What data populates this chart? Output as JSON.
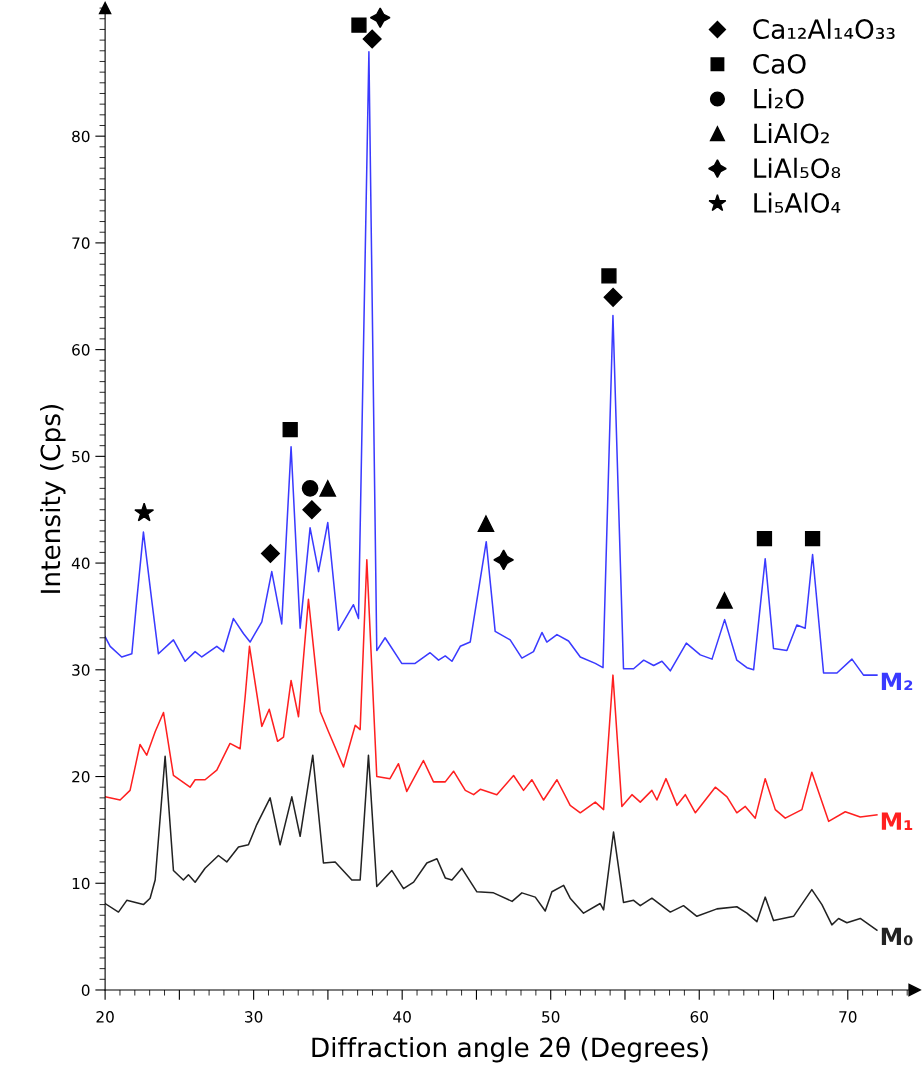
{
  "chart_data": {
    "type": "line",
    "xlabel": "Diffraction angle 2θ (Degrees)",
    "ylabel": "Intensity (Cps)",
    "xlim": [
      20,
      74.5
    ],
    "ylim": [
      0,
      92
    ],
    "xticks": [
      20,
      {
        "value": 25,
        "label": null
      },
      30,
      {
        "value": 35,
        "label": null
      },
      40,
      {
        "value": 45,
        "label": null
      },
      50,
      {
        "value": 55,
        "label": null
      },
      60,
      {
        "value": 65,
        "label": null
      },
      70
    ],
    "yticks": [
      0,
      10,
      20,
      30,
      40,
      50,
      60,
      70,
      80
    ],
    "legend": "top right",
    "line_style": "solid",
    "series": [
      {
        "name": "M₀",
        "color": "#222222",
        "x": [
          20.0,
          20.9,
          21.46,
          22.58,
          23.03,
          23.37,
          24.04,
          24.6,
          25.27,
          25.61,
          26.06,
          26.73,
          27.63,
          28.19,
          28.98,
          29.65,
          30.21,
          31.11,
          31.78,
          32.57,
          33.13,
          33.98,
          34.7,
          35.49,
          36.61,
          37.17,
          37.73,
          38.29,
          39.3,
          40.09,
          40.77,
          41.66,
          42.34,
          42.9,
          43.35,
          44.02,
          45.03,
          46.15,
          47.4,
          48.06,
          48.96,
          49.63,
          50.08,
          50.87,
          51.31,
          52.21,
          53.33,
          53.56,
          54.23,
          54.9,
          55.58,
          56.03,
          56.81,
          58.05,
          58.94,
          59.84,
          61.19,
          62.53,
          63.21,
          63.88,
          64.44,
          65.0,
          66.35,
          67.58,
          68.26,
          68.93,
          69.38,
          69.94,
          70.84,
          71.96
        ],
        "values": [
          8.1,
          7.3,
          8.4,
          8.0,
          8.6,
          10.3,
          21.9,
          11.2,
          10.3,
          10.8,
          10.1,
          11.4,
          12.6,
          12.0,
          13.4,
          13.6,
          15.5,
          18.0,
          13.6,
          18.1,
          14.4,
          22.0,
          11.9,
          12.0,
          10.3,
          10.3,
          22.0,
          9.7,
          11.2,
          9.5,
          10.1,
          11.9,
          12.3,
          10.5,
          10.3,
          11.4,
          9.2,
          9.1,
          8.3,
          9.1,
          8.7,
          7.4,
          9.2,
          9.8,
          8.6,
          7.2,
          8.1,
          7.5,
          14.8,
          8.2,
          8.4,
          7.9,
          8.6,
          7.3,
          7.9,
          6.9,
          7.6,
          7.8,
          7.2,
          6.4,
          8.7,
          6.5,
          6.9,
          9.4,
          8.0,
          6.1,
          6.7,
          6.3,
          6.7,
          5.6
        ]
      },
      {
        "name": "M₁",
        "color": "#ff2020",
        "x": [
          20.0,
          21.01,
          21.68,
          22.35,
          22.8,
          23.37,
          23.93,
          24.6,
          25.72,
          26.06,
          26.73,
          27.52,
          28.41,
          29.09,
          29.43,
          29.72,
          30.55,
          31.05,
          31.61,
          32.01,
          32.52,
          33.02,
          33.69,
          34.48,
          35.04,
          36.05,
          36.84,
          37.17,
          37.62,
          38.29,
          39.18,
          39.75,
          40.31,
          41.43,
          42.11,
          42.9,
          43.46,
          44.25,
          44.81,
          45.26,
          46.37,
          47.5,
          48.17,
          48.73,
          49.52,
          50.42,
          51.31,
          51.99,
          53.0,
          53.56,
          54.19,
          54.79,
          55.47,
          56.03,
          56.81,
          57.15,
          57.76,
          58.5,
          59.06,
          59.74,
          61.08,
          61.87,
          62.53,
          63.1,
          63.77,
          64.44,
          65.12,
          65.79,
          66.91,
          67.58,
          68.71,
          69.83,
          70.84,
          71.96
        ],
        "values": [
          18.1,
          17.8,
          18.7,
          23.0,
          22.0,
          24.2,
          26.0,
          20.1,
          19.0,
          19.7,
          19.7,
          20.6,
          23.1,
          22.6,
          27.5,
          32.2,
          24.7,
          26.3,
          23.3,
          23.7,
          29.0,
          25.6,
          36.6,
          26.1,
          24.2,
          20.9,
          24.8,
          24.4,
          40.3,
          20.0,
          19.8,
          21.2,
          18.6,
          21.5,
          19.5,
          19.5,
          20.5,
          18.7,
          18.3,
          18.8,
          18.3,
          20.1,
          18.7,
          19.7,
          17.8,
          19.7,
          17.3,
          16.6,
          17.6,
          16.9,
          29.5,
          17.2,
          18.3,
          17.6,
          18.7,
          17.8,
          19.8,
          17.3,
          18.3,
          16.6,
          19.0,
          18.1,
          16.6,
          17.2,
          16.1,
          19.8,
          16.9,
          16.1,
          16.9,
          20.4,
          15.8,
          16.7,
          16.2,
          16.4
        ]
      },
      {
        "name": "M₂",
        "color": "#3a3aff",
        "x": [
          20.0,
          20.34,
          21.12,
          21.8,
          22.13,
          22.58,
          23.14,
          23.59,
          24.6,
          25.39,
          26.06,
          26.51,
          27.52,
          27.97,
          28.64,
          29.31,
          29.76,
          30.55,
          31.22,
          31.89,
          32.52,
          33.13,
          33.8,
          34.37,
          34.99,
          35.71,
          36.72,
          37.06,
          37.76,
          38.29,
          38.85,
          39.97,
          40.87,
          41.88,
          42.45,
          42.9,
          43.35,
          43.91,
          44.58,
          45.66,
          46.26,
          47.27,
          48.06,
          48.84,
          49.41,
          49.74,
          50.42,
          51.2,
          51.99,
          53.0,
          53.52,
          54.19,
          54.9,
          55.58,
          56.26,
          56.93,
          57.49,
          58.05,
          59.13,
          60.07,
          60.86,
          61.71,
          62.53,
          63.21,
          63.66,
          64.44,
          65.0,
          65.9,
          66.57,
          67.13,
          67.63,
          68.37,
          69.27,
          70.28,
          71.06,
          71.96
        ],
        "values": [
          33.1,
          32.2,
          31.2,
          31.5,
          36.5,
          42.9,
          36.5,
          31.5,
          32.8,
          30.8,
          31.7,
          31.2,
          32.2,
          31.7,
          34.8,
          33.4,
          32.6,
          34.5,
          39.2,
          34.3,
          50.9,
          33.9,
          43.3,
          39.2,
          43.8,
          33.7,
          36.1,
          34.8,
          87.9,
          31.8,
          33.0,
          30.6,
          30.6,
          31.6,
          30.9,
          31.3,
          30.8,
          32.2,
          32.6,
          42.0,
          33.6,
          32.8,
          31.1,
          31.7,
          33.5,
          32.6,
          33.3,
          32.7,
          31.2,
          30.6,
          30.2,
          63.2,
          30.1,
          30.1,
          30.9,
          30.4,
          30.8,
          29.9,
          32.5,
          31.4,
          31.0,
          34.7,
          30.9,
          30.2,
          30.0,
          40.4,
          32.0,
          31.8,
          34.2,
          33.9,
          40.8,
          29.7,
          29.7,
          31.0,
          29.5,
          29.5
        ]
      },
      {
        "name": "Ca₁₂Al₁₄O₃₃",
        "type": "scatter",
        "marker": "diamond",
        "color": "#000000",
        "x": [
          31.13,
          33.92,
          37.98,
          54.2
        ],
        "values": [
          40.9,
          45.0,
          89.1,
          64.9
        ]
      },
      {
        "name": "CaO",
        "type": "scatter",
        "marker": "square",
        "color": "#000000",
        "x": [
          32.46,
          37.09,
          53.92,
          64.39,
          67.63
        ],
        "values": [
          52.5,
          90.4,
          66.9,
          42.3,
          42.3
        ]
      },
      {
        "name": "Li₂O",
        "type": "scatter",
        "marker": "circle",
        "color": "#000000",
        "x": [
          33.8
        ],
        "values": [
          47.0
        ]
      },
      {
        "name": "LiAlO₂",
        "type": "scatter",
        "marker": "triangle",
        "color": "#000000",
        "x": [
          34.99,
          45.64,
          61.7
        ],
        "values": [
          47.0,
          43.7,
          36.5
        ]
      },
      {
        "name": "LiAl₅O₈",
        "type": "scatter",
        "marker": "cross",
        "color": "#000000",
        "x": [
          38.52,
          46.83
        ],
        "values": [
          91.1,
          40.3
        ]
      },
      {
        "name": "Li₅AlO₄",
        "type": "scatter",
        "marker": "star",
        "color": "#000000",
        "x": [
          22.63
        ],
        "values": [
          44.7
        ]
      }
    ]
  }
}
